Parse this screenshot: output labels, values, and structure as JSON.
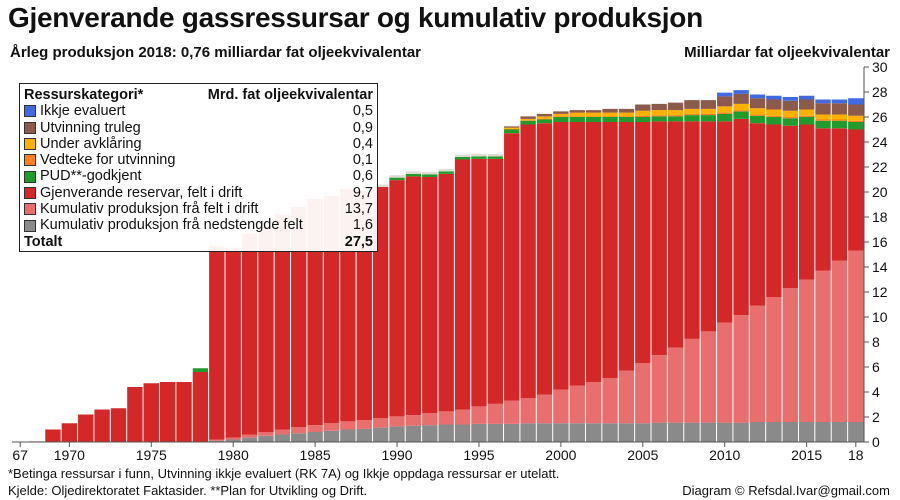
{
  "title": "Gjenverande gassressursar og kumulativ produksjon",
  "subtitle": "Årleg produksjon 2018: 0,76 milliardar fat oljeekvivalentar",
  "unit_label": "Milliardar fat oljeekvivalentar",
  "footnote_1": "*Betinga ressursar i funn, Utvinning ikkje evaluert (RK 7A) og Ikkje oppdaga ressursar er utelatt.",
  "footnote_2": "Kjelde: Oljedirektoratet Faktasider. **Plan for Utvikling og Drift.",
  "credit": "Diagram © Refsdal.Ivar@gmail.com",
  "legend": {
    "header_category": "Ressurskategori*",
    "header_value": "Mrd. fat oljeekvivalentar",
    "rows": [
      {
        "label": "Ikkje evaluert",
        "value": "0,5",
        "color": "#4169e1"
      },
      {
        "label": "Utvinning truleg",
        "value": "0,9",
        "color": "#8b5a4a"
      },
      {
        "label": "Under avklåring",
        "value": "0,4",
        "color": "#ffb000"
      },
      {
        "label": "Vedteke for utvinning",
        "value": "0,1",
        "color": "#ff7f1e"
      },
      {
        "label": "PUD**-godkjent",
        "value": "0,6",
        "color": "#229a2c"
      },
      {
        "label": "Gjenverande reservar, felt i drift",
        "value": "9,7",
        "color": "#d42828"
      },
      {
        "label": "Kumulativ produksjon frå felt i drift",
        "value": "13,7",
        "color": "#e96f6f"
      },
      {
        "label": "Kumulativ produksjon frå nedstengde felt",
        "value": "1,6",
        "color": "#8a8a8a"
      }
    ],
    "total_label": "Totalt",
    "total_value": "27,5"
  },
  "chart_data": {
    "type": "bar",
    "stacked": true,
    "ylim": [
      0,
      30
    ],
    "yticks": [
      0,
      2,
      4,
      6,
      8,
      10,
      12,
      14,
      16,
      18,
      20,
      22,
      24,
      26,
      28,
      30
    ],
    "xtick_labels": [
      "67",
      "1970",
      "1975",
      "1980",
      "1985",
      "1990",
      "1995",
      "2000",
      "2005",
      "2010",
      "2015",
      "18"
    ],
    "xtick_years": [
      1967,
      1970,
      1975,
      1980,
      1985,
      1990,
      1995,
      2000,
      2005,
      2010,
      2015,
      2018
    ],
    "grid": false,
    "legend_position": "top-left",
    "categories": [
      1967,
      1968,
      1969,
      1970,
      1971,
      1972,
      1973,
      1974,
      1975,
      1976,
      1977,
      1978,
      1979,
      1980,
      1981,
      1982,
      1983,
      1984,
      1985,
      1986,
      1987,
      1988,
      1989,
      1990,
      1991,
      1992,
      1993,
      1994,
      1995,
      1996,
      1997,
      1998,
      1999,
      2000,
      2001,
      2002,
      2003,
      2004,
      2005,
      2006,
      2007,
      2008,
      2009,
      2010,
      2011,
      2012,
      2013,
      2014,
      2015,
      2016,
      2017,
      2018
    ],
    "series": [
      {
        "name": "Kumulativ produksjon frå nedstengde felt",
        "color": "#8a8a8a",
        "values": [
          0,
          0,
          0,
          0,
          0,
          0,
          0,
          0,
          0,
          0,
          0,
          0,
          0.1,
          0.2,
          0.35,
          0.5,
          0.6,
          0.7,
          0.8,
          0.9,
          1.0,
          1.05,
          1.15,
          1.25,
          1.3,
          1.35,
          1.4,
          1.4,
          1.45,
          1.45,
          1.45,
          1.5,
          1.5,
          1.5,
          1.5,
          1.5,
          1.5,
          1.5,
          1.5,
          1.55,
          1.55,
          1.55,
          1.55,
          1.55,
          1.55,
          1.6,
          1.6,
          1.6,
          1.6,
          1.6,
          1.6,
          1.6
        ]
      },
      {
        "name": "Kumulativ produksjon frå felt i drift",
        "color": "#e96f6f",
        "values": [
          0,
          0,
          0,
          0,
          0,
          0,
          0,
          0,
          0,
          0,
          0,
          0,
          0.1,
          0.15,
          0.25,
          0.3,
          0.4,
          0.5,
          0.55,
          0.6,
          0.65,
          0.7,
          0.75,
          0.8,
          0.85,
          0.95,
          1.05,
          1.2,
          1.4,
          1.6,
          1.85,
          2.0,
          2.3,
          2.7,
          3.0,
          3.3,
          3.6,
          4.2,
          4.8,
          5.4,
          6.0,
          6.7,
          7.3,
          8.0,
          8.6,
          9.3,
          10.0,
          10.7,
          11.4,
          12.1,
          12.9,
          13.7
        ]
      },
      {
        "name": "Gjenverande reservar, felt i drift",
        "color": "#d42828",
        "values": [
          0,
          0.05,
          1.0,
          1.5,
          2.2,
          2.6,
          2.7,
          4.4,
          4.7,
          4.8,
          4.8,
          5.6,
          15.5,
          15.2,
          16.1,
          16.5,
          17.2,
          17.6,
          18.1,
          18.2,
          18.6,
          18.4,
          18.5,
          18.9,
          19.1,
          18.9,
          19.0,
          20.0,
          19.8,
          19.6,
          21.4,
          21.9,
          21.7,
          21.4,
          21.1,
          20.8,
          20.5,
          19.9,
          19.3,
          18.7,
          18.1,
          17.4,
          16.8,
          16.1,
          15.7,
          14.6,
          13.8,
          13.0,
          12.4,
          11.4,
          10.6,
          9.7
        ]
      },
      {
        "name": "PUD**-godkjent",
        "color": "#229a2c",
        "values": [
          0,
          0,
          0,
          0,
          0,
          0,
          0,
          0,
          0,
          0,
          0,
          0.3,
          0,
          0,
          0,
          0,
          0,
          0,
          0,
          0,
          0,
          0,
          0,
          0.2,
          0.2,
          0.2,
          0.2,
          0.2,
          0.2,
          0.2,
          0.3,
          0.3,
          0.3,
          0.4,
          0.4,
          0.4,
          0.4,
          0.4,
          0.4,
          0.4,
          0.4,
          0.5,
          0.5,
          0.6,
          0.6,
          0.6,
          0.6,
          0.6,
          0.6,
          0.6,
          0.6,
          0.6
        ]
      },
      {
        "name": "Vedteke for utvinning",
        "color": "#ff7f1e",
        "values": [
          0,
          0,
          0,
          0,
          0,
          0,
          0,
          0,
          0,
          0,
          0,
          0,
          0,
          0,
          0,
          0,
          0,
          0,
          0,
          0,
          0,
          0,
          0,
          0,
          0,
          0,
          0,
          0,
          0,
          0,
          0.05,
          0.05,
          0.05,
          0.05,
          0.05,
          0.05,
          0.05,
          0.05,
          0.1,
          0.1,
          0.1,
          0.1,
          0.1,
          0.1,
          0.1,
          0.1,
          0.1,
          0.1,
          0.1,
          0.1,
          0.1,
          0.1
        ]
      },
      {
        "name": "Under avklåring",
        "color": "#ffb000",
        "values": [
          0,
          0,
          0,
          0,
          0,
          0,
          0,
          0,
          0,
          0,
          0,
          0,
          0,
          0,
          0,
          0,
          0,
          0,
          0,
          0,
          0,
          0,
          0,
          0,
          0,
          0,
          0,
          0,
          0,
          0,
          0.1,
          0.1,
          0.2,
          0.2,
          0.3,
          0.3,
          0.3,
          0.3,
          0.4,
          0.4,
          0.4,
          0.4,
          0.4,
          0.5,
          0.5,
          0.5,
          0.5,
          0.5,
          0.5,
          0.4,
          0.4,
          0.4
        ]
      },
      {
        "name": "Utvinning truleg",
        "color": "#8b5a4a",
        "values": [
          0,
          0,
          0,
          0,
          0,
          0,
          0,
          0,
          0,
          0,
          0,
          0,
          0,
          0,
          0,
          0,
          0,
          0,
          0,
          0,
          0,
          0,
          0,
          0,
          0,
          0,
          0,
          0,
          0,
          0,
          0.1,
          0.2,
          0.2,
          0.2,
          0.2,
          0.2,
          0.3,
          0.3,
          0.5,
          0.5,
          0.6,
          0.7,
          0.7,
          0.8,
          0.8,
          0.8,
          0.8,
          0.8,
          0.8,
          0.9,
          0.9,
          0.9
        ]
      },
      {
        "name": "Ikkje evaluert",
        "color": "#4169e1",
        "values": [
          0,
          0,
          0,
          0,
          0,
          0,
          0,
          0,
          0,
          0,
          0,
          0,
          0,
          0,
          0,
          0,
          0,
          0,
          0,
          0,
          0,
          0,
          0,
          0,
          0,
          0,
          0,
          0,
          0,
          0,
          0,
          0,
          0,
          0,
          0,
          0,
          0,
          0,
          0,
          0,
          0,
          0,
          0,
          0.3,
          0.3,
          0.3,
          0.3,
          0.3,
          0.3,
          0.3,
          0.3,
          0.5
        ]
      },
      {
        "name": "",
        "color": "#dddcd4",
        "values": [
          0,
          0,
          0,
          0,
          0,
          0,
          0,
          0,
          0,
          0,
          0,
          0,
          0.4,
          0.3,
          0.3,
          0.4,
          0.3,
          0.3,
          0.3,
          0.3,
          0.3,
          0.3,
          0.2,
          0.2,
          0.2,
          0.2,
          0.2,
          0.2,
          0.2,
          0.2,
          0,
          0,
          0,
          0,
          0,
          0,
          0,
          0,
          0,
          0,
          0,
          0,
          0,
          0,
          0,
          0,
          0,
          0,
          0,
          0,
          0,
          0
        ]
      }
    ]
  }
}
